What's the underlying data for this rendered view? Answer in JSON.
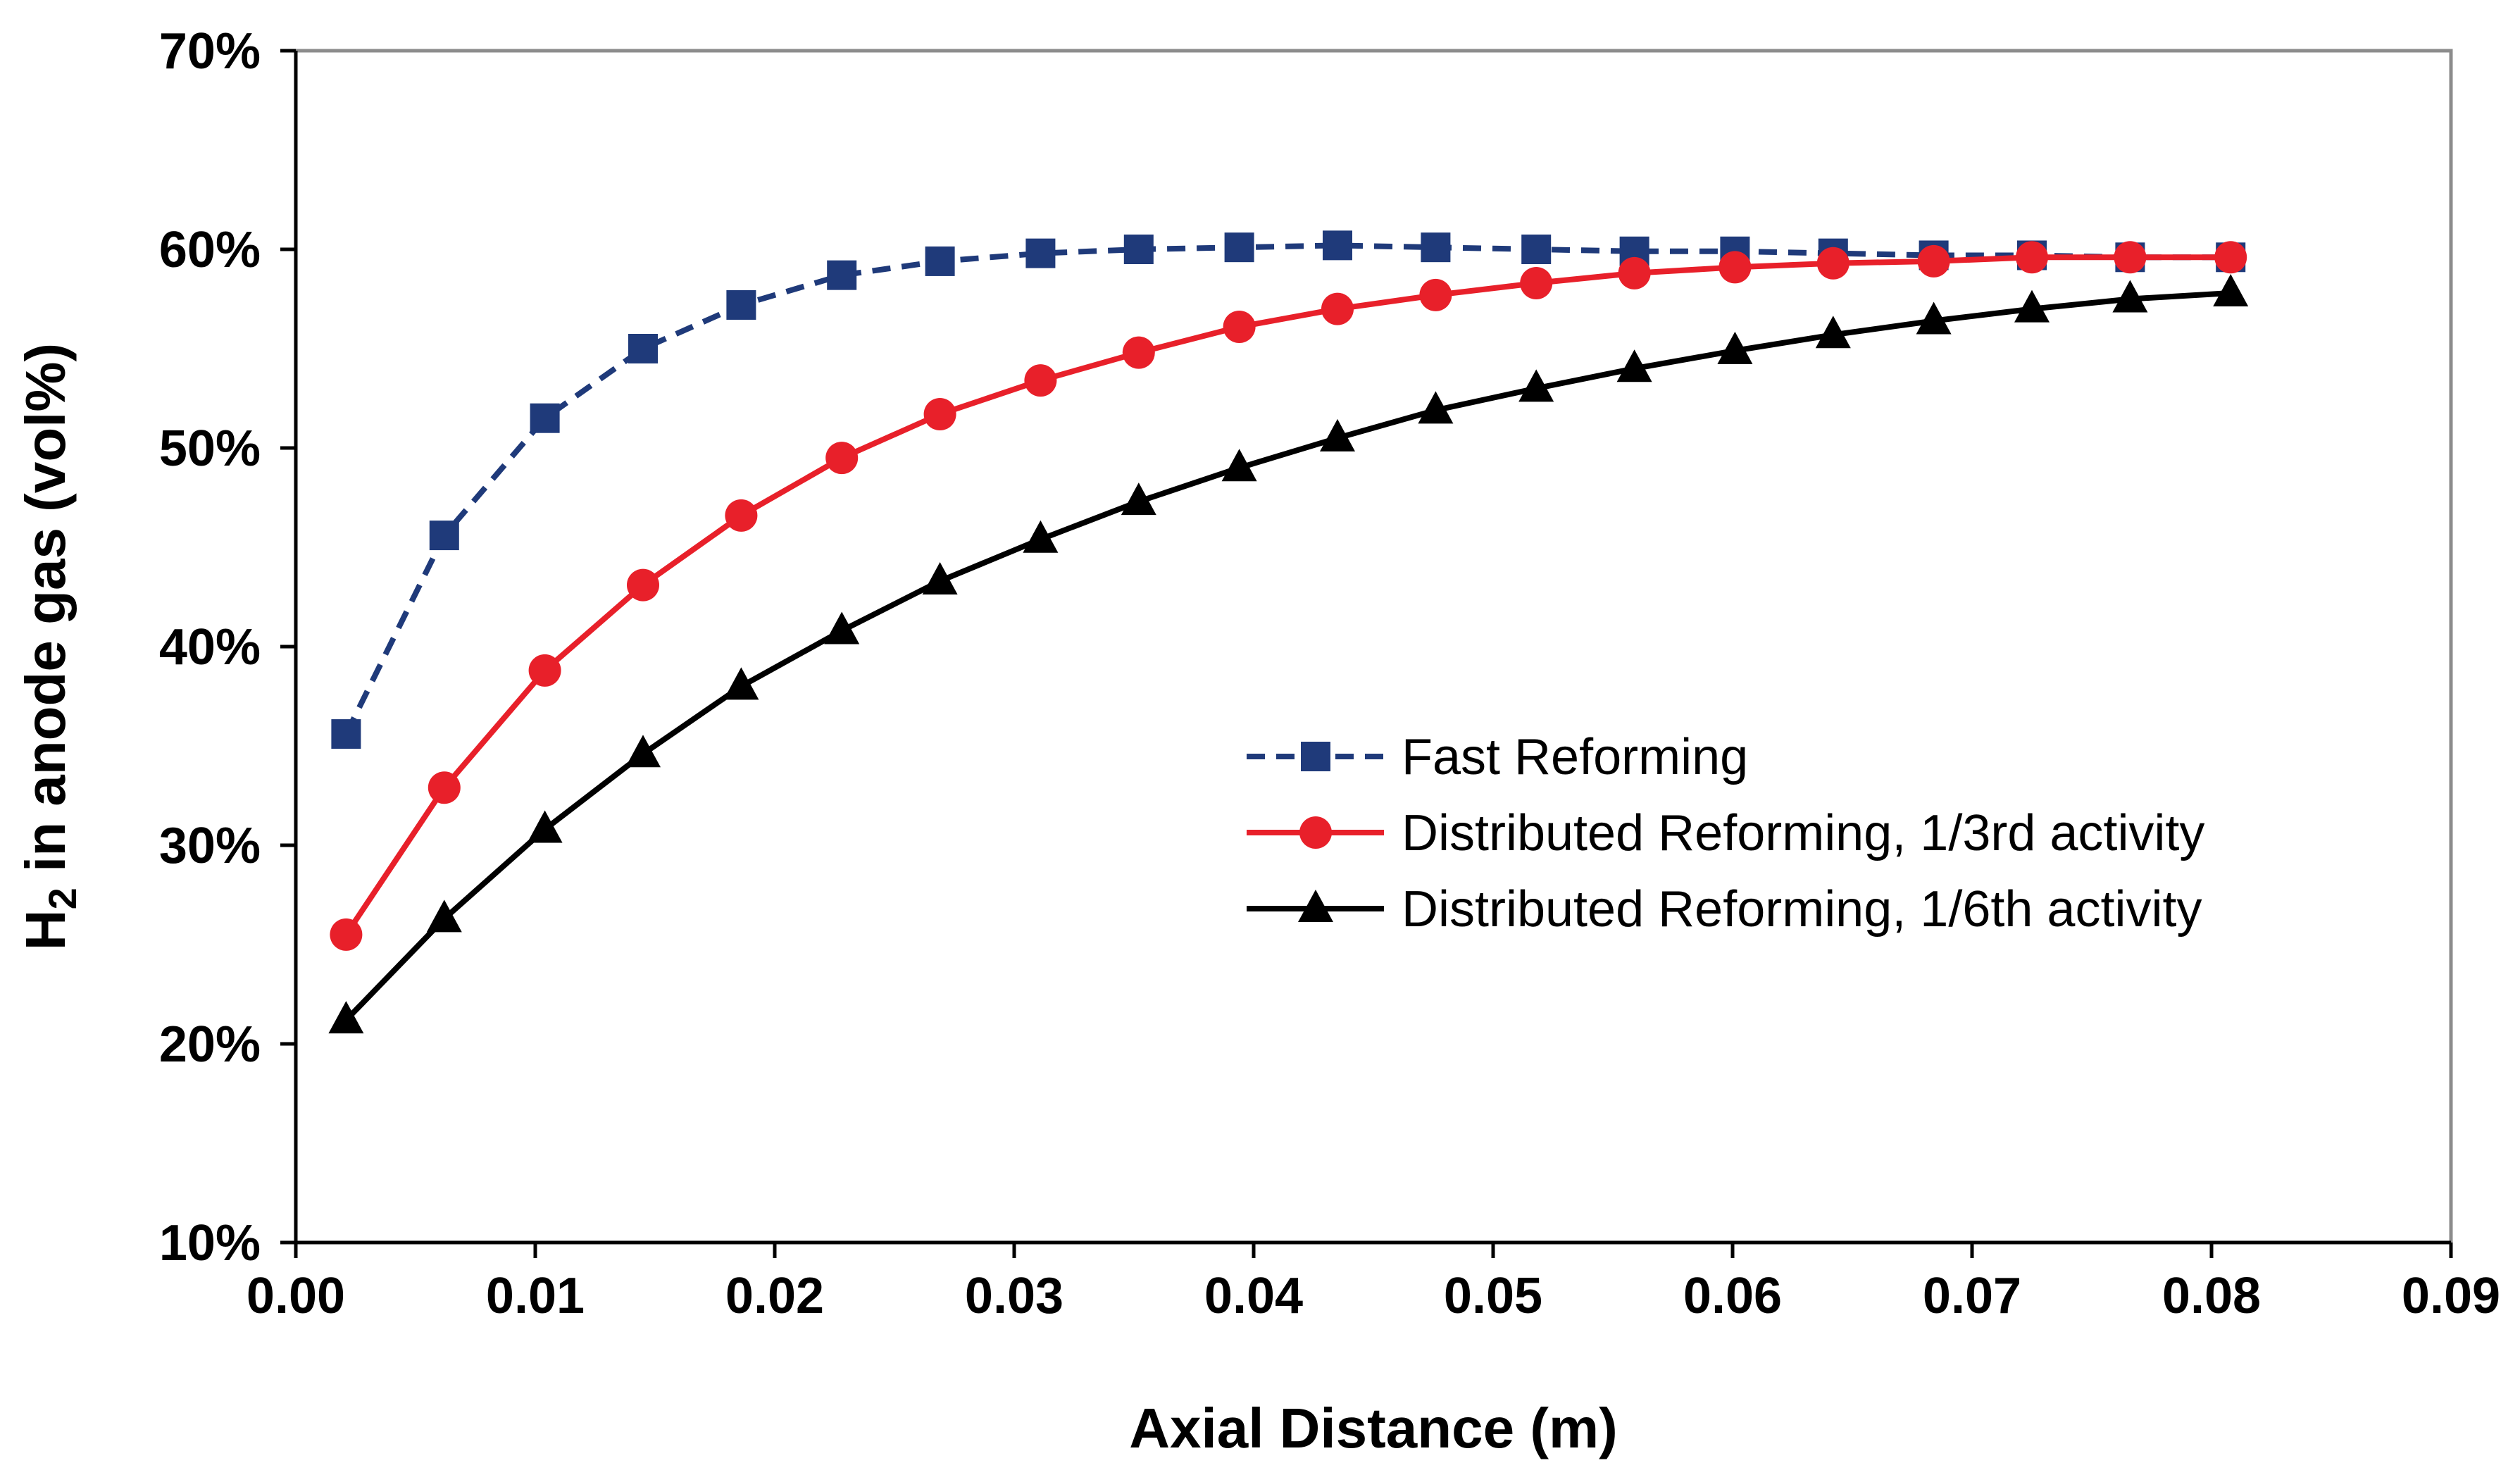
{
  "chart_data": {
    "type": "line",
    "title": "",
    "xlabel": "Axial Distance (m)",
    "ylabel": {
      "prefix": "H",
      "subscript": "2",
      "rest": " in anode gas  (vol%)"
    },
    "xlim": [
      0.0,
      0.09
    ],
    "ylim": [
      0.1,
      0.7
    ],
    "x_ticks": [
      0.0,
      0.01,
      0.02,
      0.03,
      0.04,
      0.05,
      0.06,
      0.07,
      0.08,
      0.09
    ],
    "x_tick_labels": [
      "0.00",
      "0.01",
      "0.02",
      "0.03",
      "0.04",
      "0.05",
      "0.06",
      "0.07",
      "0.08",
      "0.09"
    ],
    "y_ticks": [
      0.1,
      0.2,
      0.3,
      0.4,
      0.5,
      0.6,
      0.7
    ],
    "y_tick_labels": [
      "10%",
      "20%",
      "30%",
      "40%",
      "50%",
      "60%",
      "70%"
    ],
    "grid": false,
    "legend_position": "center-right",
    "x": [
      0.0021,
      0.0062,
      0.0104,
      0.0145,
      0.0186,
      0.0228,
      0.0269,
      0.0311,
      0.0352,
      0.0394,
      0.0435,
      0.0476,
      0.0518,
      0.0559,
      0.0601,
      0.0642,
      0.0684,
      0.0725,
      0.0766,
      0.0808
    ],
    "series": [
      {
        "name": "Fast Reforming",
        "color": "#1F3A7A",
        "line_style": "dashed",
        "marker": "square",
        "values": [
          0.356,
          0.456,
          0.515,
          0.55,
          0.572,
          0.587,
          0.594,
          0.598,
          0.6,
          0.601,
          0.602,
          0.601,
          0.6,
          0.599,
          0.599,
          0.598,
          0.597,
          0.597,
          0.596,
          0.596
        ]
      },
      {
        "name": "Distributed Reforming, 1/3rd activity",
        "color": "#E8202A",
        "line_style": "solid",
        "marker": "circle",
        "values": [
          0.255,
          0.329,
          0.388,
          0.431,
          0.466,
          0.495,
          0.517,
          0.534,
          0.548,
          0.561,
          0.57,
          0.577,
          0.583,
          0.588,
          0.591,
          0.593,
          0.594,
          0.596,
          0.596,
          0.596
        ]
      },
      {
        "name": "Distributed Reforming, 1/6th activity",
        "color": "#000000",
        "line_style": "solid",
        "marker": "triangle",
        "values": [
          0.212,
          0.263,
          0.308,
          0.346,
          0.38,
          0.408,
          0.433,
          0.454,
          0.473,
          0.49,
          0.505,
          0.519,
          0.53,
          0.54,
          0.549,
          0.557,
          0.564,
          0.57,
          0.575,
          0.578
        ]
      }
    ]
  }
}
